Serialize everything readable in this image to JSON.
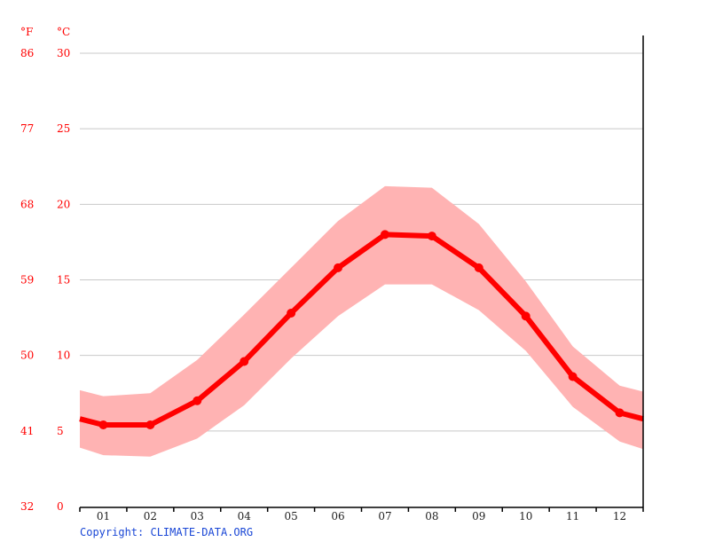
{
  "chart_data": {
    "type": "line",
    "title": "",
    "xlabel": "",
    "ylabel_left_f": "°F",
    "ylabel_left_c": "°C",
    "categories": [
      "01",
      "02",
      "03",
      "04",
      "05",
      "06",
      "07",
      "08",
      "09",
      "10",
      "11",
      "12"
    ],
    "series": [
      {
        "name": "Average temperature (°C)",
        "values": [
          5.4,
          5.4,
          7.0,
          9.6,
          12.8,
          15.8,
          18.0,
          17.9,
          15.8,
          12.6,
          8.6,
          6.2
        ],
        "color": "#ff0000"
      },
      {
        "name": "Max temperature (°C)",
        "values": [
          7.3,
          7.5,
          9.7,
          12.7,
          15.8,
          18.9,
          21.2,
          21.1,
          18.7,
          14.9,
          10.6,
          8.0
        ],
        "color": "#ffb3b3"
      },
      {
        "name": "Min temperature (°C)",
        "values": [
          3.4,
          3.3,
          4.5,
          6.7,
          9.8,
          12.6,
          14.7,
          14.7,
          13.0,
          10.3,
          6.6,
          4.3
        ],
        "color": "#ffb3b3"
      }
    ],
    "edge_values": {
      "avg_start": 5.8,
      "avg_end": 5.8,
      "max_start": 7.7,
      "max_end": 7.6,
      "min_start": 3.9,
      "min_end": 3.8
    },
    "y_ticks_c": [
      0,
      5,
      10,
      15,
      20,
      25,
      30
    ],
    "y_ticks_f": [
      32,
      41,
      50,
      59,
      68,
      77,
      86
    ],
    "ylim": [
      0,
      30
    ],
    "grid": true,
    "legend": "none"
  },
  "axis": {
    "unit_f": "°F",
    "unit_c": "°C"
  },
  "footer": {
    "copyright": "Copyright: CLIMATE-DATA.ORG"
  },
  "colors": {
    "line": "#ff0000",
    "band": "#ffb3b3",
    "grid": "#c8c8c8",
    "axis_label": "#ff0000",
    "copyright": "#1a47d6"
  }
}
